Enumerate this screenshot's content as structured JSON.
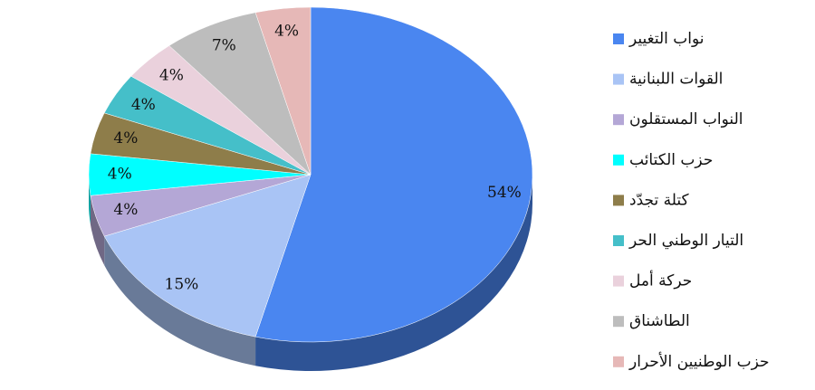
{
  "chart_data": {
    "type": "pie",
    "categories": [
      "نواب التغيير",
      "القوات اللبنانية",
      "النواب المستقلون",
      "حزب الكتائب",
      "كتلة تجدّد",
      "التيار الوطني الحر",
      "حركة أمل",
      "الطاشناق",
      "حزب الوطنيين الأحرار"
    ],
    "values": [
      54,
      15,
      4,
      4,
      4,
      4,
      4,
      7,
      4
    ],
    "value_labels": [
      "54%",
      "15%",
      "4%",
      "4%",
      "4%",
      "4%",
      "4%",
      "7%",
      "4%"
    ],
    "colors": [
      "#4a86f0",
      "#a9c4f5",
      "#b4a7d6",
      "#00ffff",
      "#8e7d4a",
      "#45bfc9",
      "#ead1dc",
      "#bdbdbd",
      "#e6b8b7"
    ],
    "legend": "right"
  }
}
